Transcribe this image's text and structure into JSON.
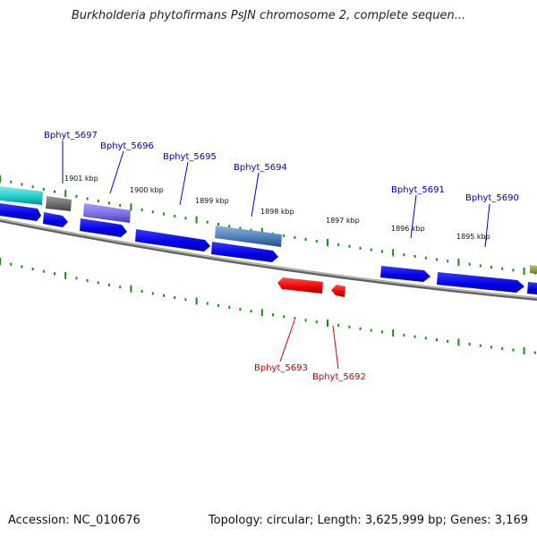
{
  "title": "Burkholderia phytofirmans PsJN chromosome 2, complete sequen...",
  "accession": "Accession: NC_010676",
  "topology": "Topology: circular; Length: 3,625,999 bp; Genes: 3,169",
  "colors": {
    "forward_label": "#0000c8",
    "reverse_label": "#cc0000",
    "forward_gene": "#0000ee",
    "reverse_gene": "#ee0000",
    "tick": "#1a8a1a",
    "backbone": "#8a8a8a"
  },
  "kbp_ticks": [
    "1901 kbp",
    "1900 kbp",
    "1899 kbp",
    "1898 kbp",
    "1897 kbp",
    "1896 kbp",
    "1895 kbp"
  ],
  "forward_genes": [
    "Bphyt_5697",
    "Bphyt_5696",
    "Bphyt_5695",
    "Bphyt_5694",
    "Bphyt_5691",
    "Bphyt_5690"
  ],
  "reverse_genes": [
    "Bphyt_5693",
    "Bphyt_5692"
  ]
}
